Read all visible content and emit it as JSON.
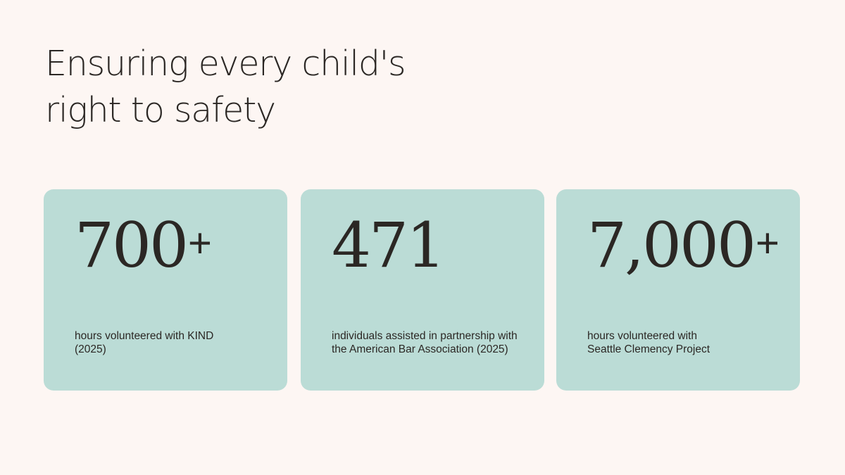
{
  "title": {
    "line1": "Ensuring every child's",
    "line2": "right to safety"
  },
  "stats": [
    {
      "value": "700",
      "suffix": "+",
      "description": [
        "hours volunteered with KIND",
        "(2025)"
      ]
    },
    {
      "value": "471",
      "suffix": "",
      "description": [
        "individuals assisted in partnership with",
        "the American Bar Association (2025)"
      ]
    },
    {
      "value": "7,000",
      "suffix": "+",
      "description": [
        "hours volunteered with",
        "Seattle Clemency Project"
      ]
    }
  ],
  "colors": {
    "background": "#fdf6f3",
    "card": "#bbdcd6",
    "text": "#2b2724"
  }
}
